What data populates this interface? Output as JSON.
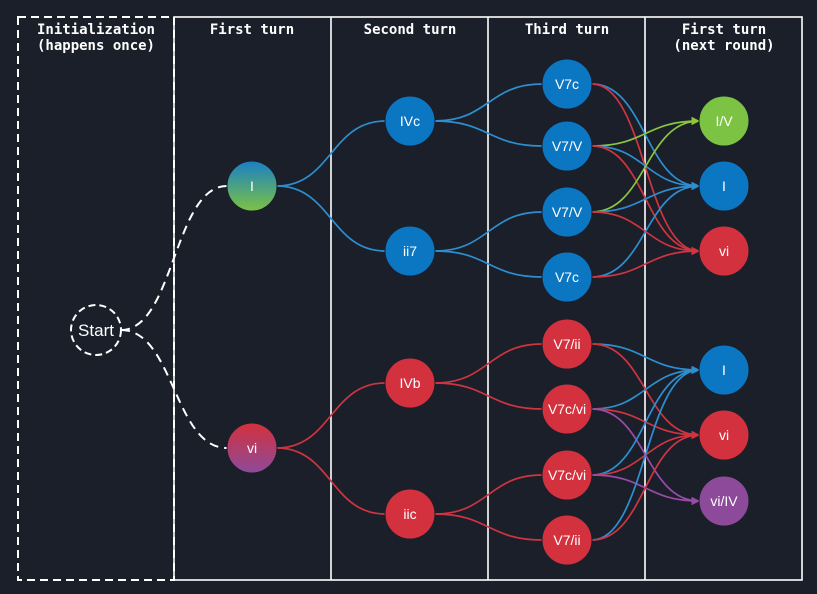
{
  "columns": [
    {
      "id": "init",
      "line1": "Initialization",
      "line2": "(happens once)"
    },
    {
      "id": "first",
      "line1": "First turn",
      "line2": ""
    },
    {
      "id": "second",
      "line1": "Second turn",
      "line2": ""
    },
    {
      "id": "third",
      "line1": "Third turn",
      "line2": ""
    },
    {
      "id": "next",
      "line1": "First turn",
      "line2": "(next round)"
    }
  ],
  "colors": {
    "background": "#1b1f2a",
    "border": "#ffffff",
    "blue": "#0b76c2",
    "red": "#d3313d",
    "green": "#7cc243",
    "purple": "#8d4a9a",
    "edge_blue": "#2d8fd0",
    "edge_red": "#cf3540",
    "edge_green": "#8ac63e",
    "edge_purple": "#9a4aa8"
  },
  "nodes": [
    {
      "id": "start",
      "label": "Start",
      "fill": "none",
      "dashed": true
    },
    {
      "id": "I1",
      "label": "I",
      "fill": "grad-blue-green"
    },
    {
      "id": "vi1",
      "label": "vi",
      "fill": "grad-red-purple"
    },
    {
      "id": "IVc",
      "label": "IVc",
      "fill": "blue"
    },
    {
      "id": "ii7",
      "label": "ii7",
      "fill": "blue"
    },
    {
      "id": "IVb",
      "label": "IVb",
      "fill": "red"
    },
    {
      "id": "iic",
      "label": "iic",
      "fill": "red"
    },
    {
      "id": "t1",
      "label": "V7c",
      "fill": "blue"
    },
    {
      "id": "t2",
      "label": "V7/V",
      "fill": "blue"
    },
    {
      "id": "t3",
      "label": "V7/V",
      "fill": "blue"
    },
    {
      "id": "t4",
      "label": "V7c",
      "fill": "blue"
    },
    {
      "id": "t5",
      "label": "V7/ii",
      "fill": "red"
    },
    {
      "id": "t6",
      "label": "V7c/vi",
      "fill": "red"
    },
    {
      "id": "t7",
      "label": "V7c/vi",
      "fill": "red"
    },
    {
      "id": "t8",
      "label": "V7/ii",
      "fill": "red"
    },
    {
      "id": "nIV",
      "label": "I/V",
      "fill": "green"
    },
    {
      "id": "nI1",
      "label": "I",
      "fill": "blue"
    },
    {
      "id": "nvi1",
      "label": "vi",
      "fill": "red"
    },
    {
      "id": "nI2",
      "label": "I",
      "fill": "blue"
    },
    {
      "id": "nvi2",
      "label": "vi",
      "fill": "red"
    },
    {
      "id": "nviIV",
      "label": "vi/IV",
      "fill": "purple"
    }
  ],
  "edges": [
    {
      "from": "start",
      "to": "I1",
      "style": "dashed-white"
    },
    {
      "from": "start",
      "to": "vi1",
      "style": "dashed-white"
    },
    {
      "from": "I1",
      "to": "IVc",
      "style": "blue"
    },
    {
      "from": "I1",
      "to": "ii7",
      "style": "blue"
    },
    {
      "from": "vi1",
      "to": "IVb",
      "style": "red"
    },
    {
      "from": "vi1",
      "to": "iic",
      "style": "red"
    },
    {
      "from": "IVc",
      "to": "t1",
      "style": "blue"
    },
    {
      "from": "IVc",
      "to": "t2",
      "style": "blue"
    },
    {
      "from": "ii7",
      "to": "t3",
      "style": "blue"
    },
    {
      "from": "ii7",
      "to": "t4",
      "style": "blue"
    },
    {
      "from": "IVb",
      "to": "t5",
      "style": "red"
    },
    {
      "from": "IVb",
      "to": "t6",
      "style": "red"
    },
    {
      "from": "iic",
      "to": "t7",
      "style": "red"
    },
    {
      "from": "iic",
      "to": "t8",
      "style": "red"
    },
    {
      "from": "t1",
      "to": "nI1",
      "style": "blue"
    },
    {
      "from": "t1",
      "to": "nvi1",
      "style": "red"
    },
    {
      "from": "t2",
      "to": "nIV",
      "style": "green"
    },
    {
      "from": "t2",
      "to": "nI1",
      "style": "blue"
    },
    {
      "from": "t2",
      "to": "nvi1",
      "style": "red"
    },
    {
      "from": "t3",
      "to": "nIV",
      "style": "green"
    },
    {
      "from": "t3",
      "to": "nI1",
      "style": "blue"
    },
    {
      "from": "t3",
      "to": "nvi1",
      "style": "red"
    },
    {
      "from": "t4",
      "to": "nI1",
      "style": "blue"
    },
    {
      "from": "t4",
      "to": "nvi1",
      "style": "red"
    },
    {
      "from": "t5",
      "to": "nI2",
      "style": "blue"
    },
    {
      "from": "t5",
      "to": "nvi2",
      "style": "red"
    },
    {
      "from": "t6",
      "to": "nI2",
      "style": "blue"
    },
    {
      "from": "t6",
      "to": "nvi2",
      "style": "red"
    },
    {
      "from": "t6",
      "to": "nviIV",
      "style": "purple"
    },
    {
      "from": "t7",
      "to": "nI2",
      "style": "blue"
    },
    {
      "from": "t7",
      "to": "nvi2",
      "style": "red"
    },
    {
      "from": "t7",
      "to": "nviIV",
      "style": "purple"
    },
    {
      "from": "t8",
      "to": "nI2",
      "style": "blue"
    },
    {
      "from": "t8",
      "to": "nvi2",
      "style": "red"
    }
  ]
}
